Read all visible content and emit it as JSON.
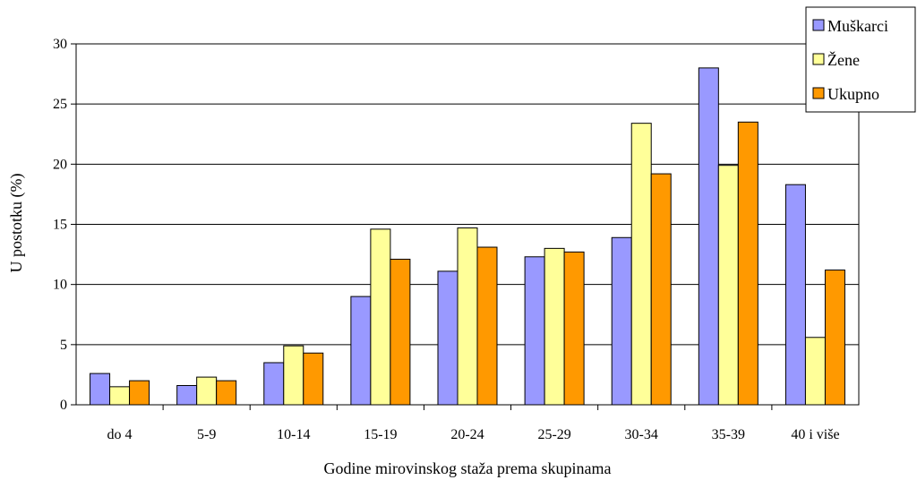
{
  "chart_data": {
    "type": "bar",
    "title": "",
    "xlabel": "Godine mirovinskog staža prema skupinama",
    "ylabel": "U postotku (%)",
    "ylim": [
      0,
      30
    ],
    "yticks": [
      0,
      5,
      10,
      15,
      20,
      25,
      30
    ],
    "grid": true,
    "legend_position": "top-right",
    "categories": [
      "do 4",
      "5-9",
      "10-14",
      "15-19",
      "20-24",
      "25-29",
      "30-34",
      "35-39",
      "40 i više"
    ],
    "series": [
      {
        "name": "Muškarci",
        "color": "#9999FF",
        "values": [
          2.6,
          1.6,
          3.5,
          9.0,
          11.1,
          12.3,
          13.9,
          28.0,
          18.3
        ]
      },
      {
        "name": "Žene",
        "color": "#FFFF99",
        "values": [
          1.5,
          2.3,
          4.9,
          14.6,
          14.7,
          13.0,
          23.4,
          19.9,
          5.6
        ]
      },
      {
        "name": "Ukupno",
        "color": "#FF9900",
        "values": [
          2.0,
          2.0,
          4.3,
          12.1,
          13.1,
          12.7,
          19.2,
          23.5,
          11.2
        ]
      }
    ]
  }
}
